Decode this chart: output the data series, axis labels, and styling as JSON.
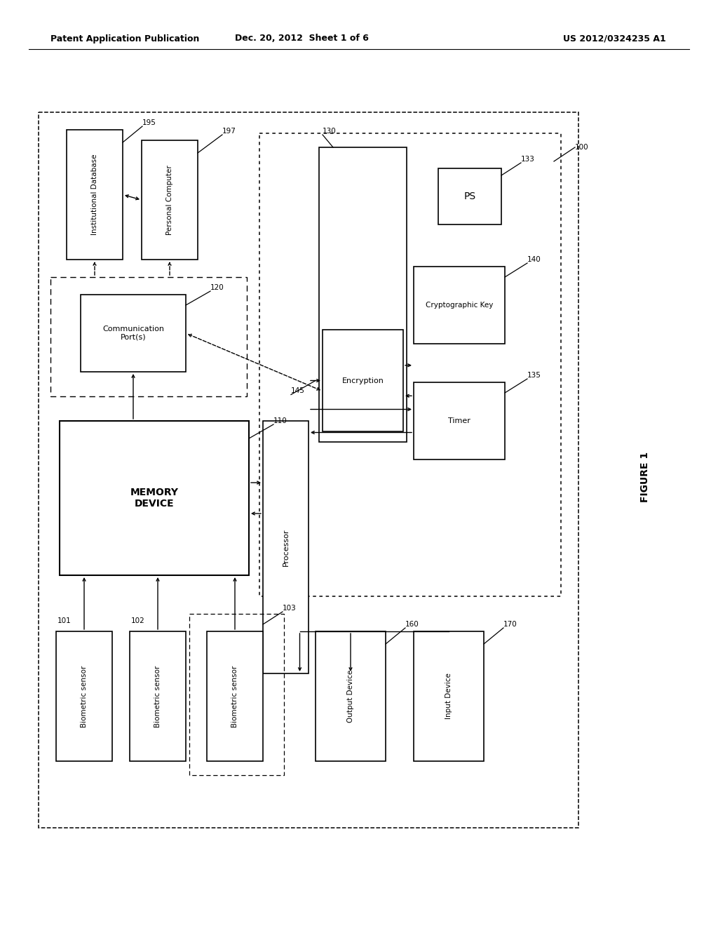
{
  "header_left": "Patent Application Publication",
  "header_mid": "Dec. 20, 2012  Sheet 1 of 6",
  "header_right": "US 2012/0324235 A1",
  "figure_label": "FIGURE 1",
  "bg_color": "#ffffff"
}
